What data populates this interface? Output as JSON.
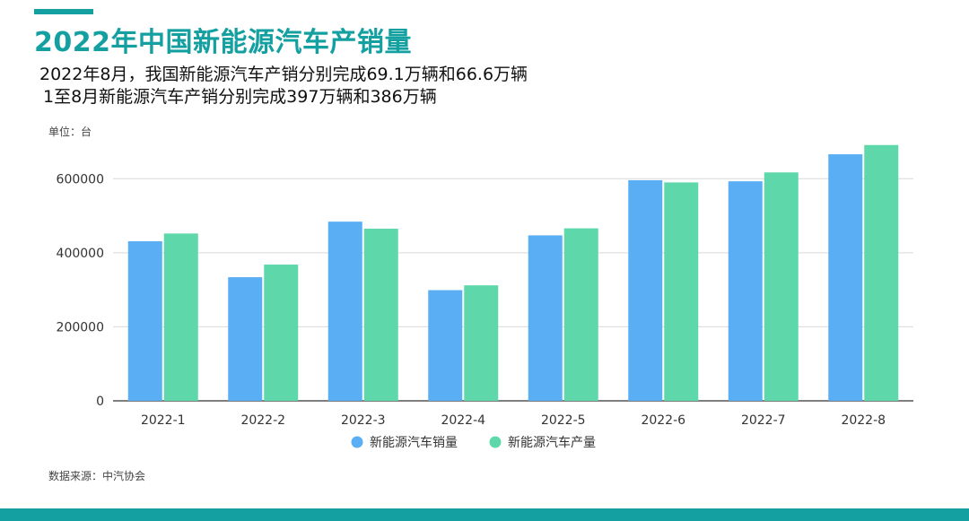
{
  "header": {
    "title": "2022年中国新能源汽车产销量",
    "subtitle_line1": "2022年8月，我国新能源汽车产销分别完成69.1万辆和66.6万辆",
    "subtitle_line2": "1至8月新能源汽车产销分别完成397万辆和386万辆"
  },
  "unit_label": "单位：台",
  "source_label": "数据来源：中汽协会",
  "colors": {
    "accent": "#14a0a0",
    "sales": "#5aaef4",
    "production": "#5ed8aa"
  },
  "chart_data": {
    "type": "bar",
    "categories": [
      "2022-1",
      "2022-2",
      "2022-3",
      "2022-4",
      "2022-5",
      "2022-6",
      "2022-7",
      "2022-8"
    ],
    "series": [
      {
        "name": "新能源汽车销量",
        "values": [
          431000,
          334000,
          484000,
          299000,
          447000,
          596000,
          593000,
          666000
        ]
      },
      {
        "name": "新能源汽车产量",
        "values": [
          452000,
          368000,
          465000,
          312000,
          466000,
          590000,
          617000,
          691000
        ]
      }
    ],
    "ylim": [
      0,
      700000
    ],
    "yticks": [
      0,
      200000,
      400000,
      600000
    ],
    "ytick_labels": [
      "0",
      "200000",
      "400000",
      "600000"
    ],
    "grid": true,
    "legend_position": "bottom-center"
  }
}
